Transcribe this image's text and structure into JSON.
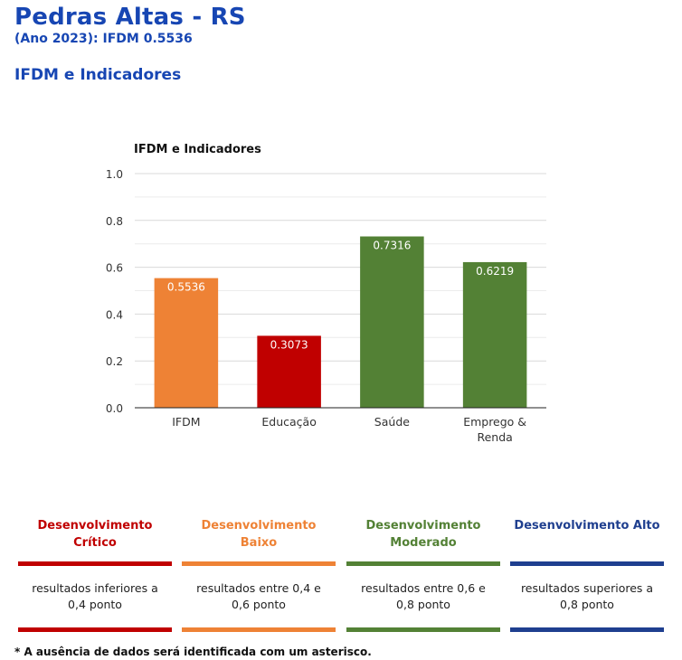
{
  "header": {
    "title": "Pedras Altas - RS",
    "subtitle": "(Ano 2023): IFDM 0.5536",
    "section_title": "IFDM e Indicadores"
  },
  "chart_data": {
    "type": "bar",
    "title": "IFDM e Indicadores",
    "categories": [
      "IFDM",
      "Educação",
      "Saúde",
      "Emprego & Renda"
    ],
    "values": [
      0.5536,
      0.3073,
      0.7316,
      0.6219
    ],
    "value_labels": [
      "0.5536",
      "0.3073",
      "0.7316",
      "0.6219"
    ],
    "bar_colors": [
      "#ee8235",
      "#c00000",
      "#538135",
      "#538135"
    ],
    "ylim": [
      0,
      1.0
    ],
    "yticks": [
      0.0,
      0.2,
      0.4,
      0.6,
      0.8,
      1.0
    ],
    "ytick_labels": [
      "0.0",
      "0.2",
      "0.4",
      "0.6",
      "0.8",
      "1.0"
    ],
    "grid": true,
    "xlabel": "",
    "ylabel": ""
  },
  "legend": [
    {
      "title": "Desenvolvimento Crítico",
      "description": "resultados inferiores a 0,4 ponto",
      "color": "#c00000"
    },
    {
      "title": "Desenvolvimento Baixo",
      "description": "resultados entre 0,4 e 0,6 ponto",
      "color": "#ee8235"
    },
    {
      "title": "Desenvolvimento Moderado",
      "description": "resultados entre 0,6 e 0,8 ponto",
      "color": "#538135"
    },
    {
      "title": "Desenvolvimento Alto",
      "description": "resultados superiores a 0,8 ponto",
      "color": "#1f3f8f"
    }
  ],
  "footnote": "* A ausência de dados será identificada com um asterisco."
}
